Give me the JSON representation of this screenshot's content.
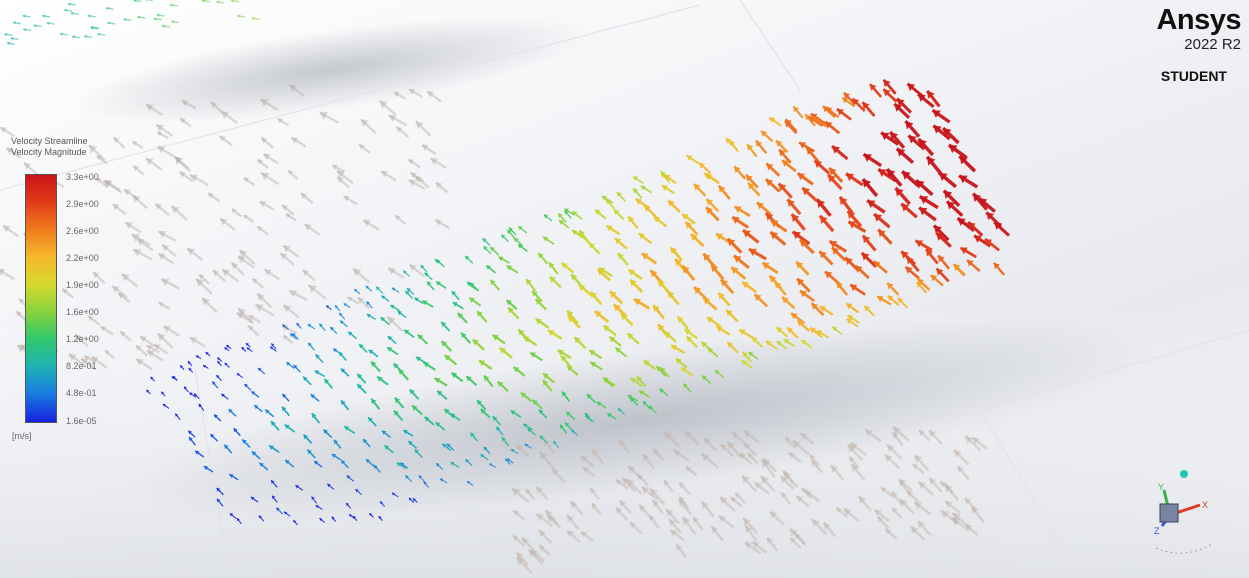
{
  "branding": {
    "brand": "Ansys",
    "version": "2022 R2",
    "edition": "STUDENT"
  },
  "legend": {
    "title_line1": "Velocity Streamline",
    "title_line2": "Velocity Magnitude",
    "ticks": [
      "3.3e+00",
      "2.9e+00",
      "2.6e+00",
      "2.2e+00",
      "1.9e+00",
      "1.6e+00",
      "1.2e+00",
      "8.2e-01",
      "4.8e-01",
      "1.6e-05"
    ],
    "unit": "[m/s]",
    "colors": [
      "#c8141a",
      "#e23a1a",
      "#f07b1d",
      "#f5b72a",
      "#d7d82e",
      "#8ad33a",
      "#33c86a",
      "#1eb5b0",
      "#1a7fe0",
      "#1522e0"
    ]
  },
  "triad": {
    "x_label": "X",
    "y_label": "Y",
    "z_label": "Z",
    "x_color": "#e03a2a",
    "y_color": "#36b34a",
    "z_color": "#2a5ce0",
    "iso_color": "#1fc7b0"
  },
  "scene": {
    "description_icon": "velocity-vector-field"
  }
}
